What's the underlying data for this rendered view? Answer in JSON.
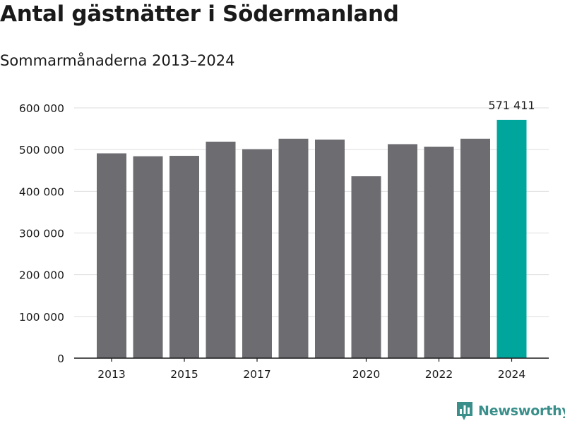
{
  "title": "Antal gästnätter i Södermanland",
  "subtitle": "Sommarmånaderna 2013–2024",
  "brand": {
    "name": "Newsworthy",
    "icon": "newsworthy-logo-icon",
    "color": "#3a8f8b"
  },
  "colors": {
    "bar": "#6d6c71",
    "highlight": "#00a59b",
    "grid": "#dddddd",
    "axis": "#1a1a1a"
  },
  "chart_data": {
    "type": "bar",
    "categories": [
      "2013",
      "2014",
      "2015",
      "2016",
      "2017",
      "2018",
      "2019",
      "2020",
      "2021",
      "2022",
      "2023",
      "2024"
    ],
    "values": [
      491000,
      484000,
      485000,
      519000,
      501000,
      526000,
      524000,
      436000,
      513000,
      507000,
      526000,
      571411
    ],
    "highlight_index": 11,
    "x_tick_labels": [
      "2013",
      "",
      "2015",
      "",
      "2017",
      "",
      "",
      "2020",
      "",
      "2022",
      "",
      "2024"
    ],
    "y_ticks": [
      0,
      100000,
      200000,
      300000,
      400000,
      500000,
      600000
    ],
    "y_tick_labels": [
      "0",
      "100 000",
      "200 000",
      "300 000",
      "400 000",
      "500 000",
      "600 000"
    ],
    "ylim": [
      0,
      600000
    ],
    "annotation": {
      "index": 11,
      "text": "571 411"
    },
    "grid": true,
    "xlabel": "",
    "ylabel": ""
  }
}
